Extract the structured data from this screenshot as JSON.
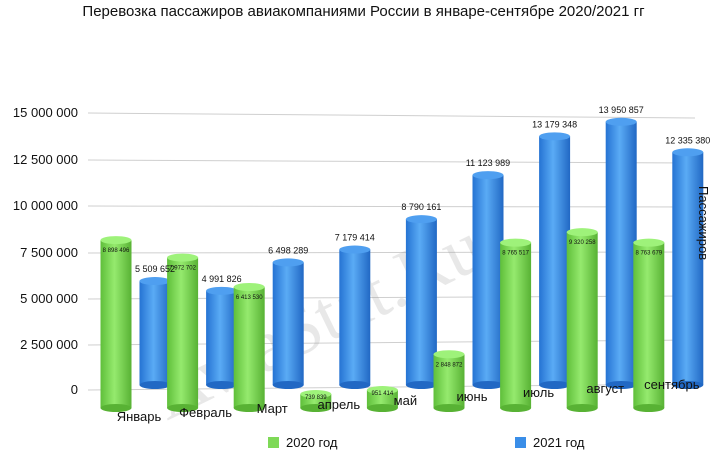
{
  "chart_data": {
    "type": "bar",
    "title": "Перевозка пассажиров авиакомпаниями России в январе-сентябре 2020/2021 гг",
    "ylabel": "Пассажиров",
    "xlabel": "",
    "ylim": [
      0,
      15000000
    ],
    "y_ticks": [
      "0",
      "2 500 000",
      "5 000 000",
      "7 500 000",
      "10 000 000",
      "12 500 000",
      "15 000 000"
    ],
    "grid": true,
    "legend_position": "bottom",
    "categories": [
      "Январь",
      "Февраль",
      "Март",
      "апрель",
      "май",
      "июнь",
      "июль",
      "август",
      "сентябрь"
    ],
    "series": [
      {
        "name": "2020 год",
        "color": "#7ed957",
        "values": [
          8898496,
          7972702,
          6413530,
          739839,
          951414,
          2848872,
          8765517,
          9320258,
          8763679
        ],
        "labels": [
          "8 898 496",
          "7 972 702",
          "6 413 530",
          "739 839",
          "951 414",
          "2 848 872",
          "8 765 517",
          "9 320 258",
          "8 763 679"
        ]
      },
      {
        "name": "2021 год",
        "color": "#3a8ee8",
        "values": [
          5509652,
          4991826,
          6498289,
          7179414,
          8790161,
          11123989,
          13179348,
          13950857,
          12335380
        ],
        "labels": [
          "5 509 652",
          "4 991 826",
          "6 498 289",
          "7 179 414",
          "8 790 161",
          "11 123 989",
          "13 179 348",
          "13 950 857",
          "12 335 380"
        ]
      }
    ]
  },
  "watermark": "AviaStat.Ru"
}
